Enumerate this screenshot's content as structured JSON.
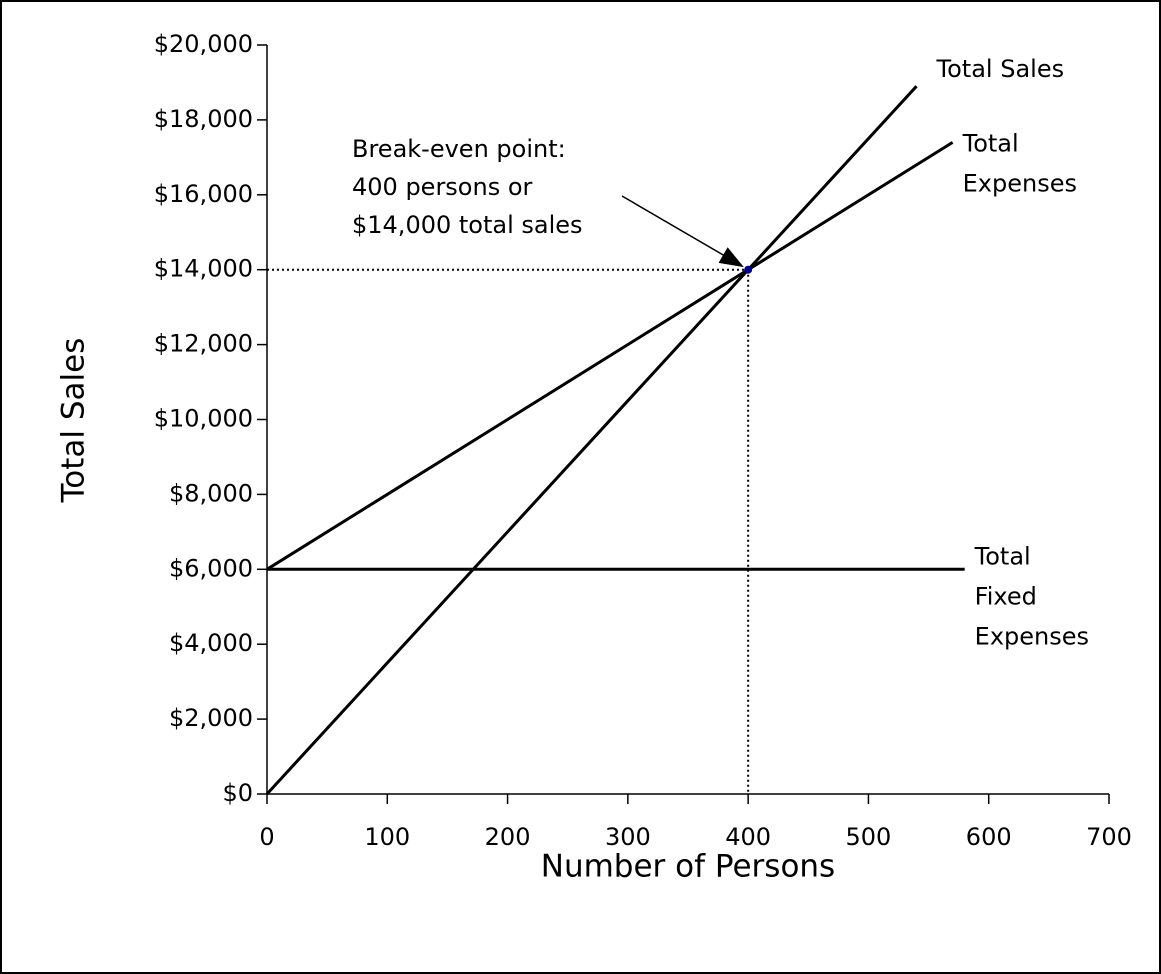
{
  "chart_data": {
    "type": "line",
    "xlabel": "Number of Persons",
    "ylabel": "Total Sales",
    "xlim": [
      0,
      700
    ],
    "xticks": [
      0,
      100,
      200,
      300,
      400,
      500,
      600,
      700
    ],
    "ylim": [
      0,
      20000
    ],
    "yticks": [
      {
        "value": 0,
        "label": "$0"
      },
      {
        "value": 2000,
        "label": "$2,000"
      },
      {
        "value": 4000,
        "label": "$4,000"
      },
      {
        "value": 6000,
        "label": "$6,000"
      },
      {
        "value": 8000,
        "label": "$8,000"
      },
      {
        "value": 10000,
        "label": "$10,000"
      },
      {
        "value": 12000,
        "label": "$12,000"
      },
      {
        "value": 14000,
        "label": "$14,000"
      },
      {
        "value": 16000,
        "label": "$16,000"
      },
      {
        "value": 18000,
        "label": "$18,000"
      },
      {
        "value": 20000,
        "label": "$20,000"
      }
    ],
    "series": [
      {
        "name": "Total Sales",
        "color": "#000000",
        "x": [
          0,
          540
        ],
        "y": [
          0,
          18900
        ]
      },
      {
        "name": "Total\nExpenses",
        "color": "#000000",
        "x": [
          0,
          570
        ],
        "y": [
          6000,
          17400
        ]
      },
      {
        "name": "Total\nFixed\nExpenses",
        "color": "#000000",
        "x": [
          0,
          580
        ],
        "y": [
          6000,
          6000
        ]
      }
    ],
    "annotation": {
      "text": "Break-even point:\n400 persons or\n$14,000 total sales",
      "x": 400,
      "y": 14000,
      "color": "#00008b"
    }
  }
}
